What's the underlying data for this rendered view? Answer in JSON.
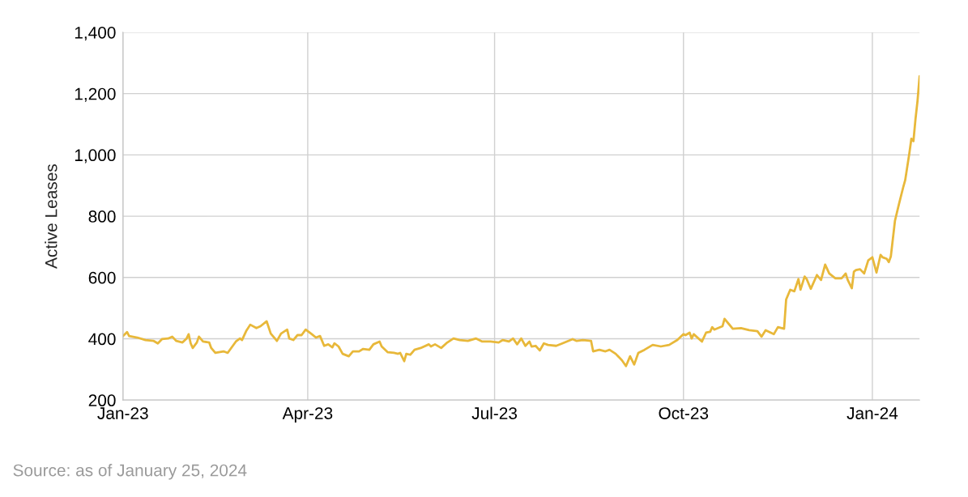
{
  "chart_data": {
    "type": "line",
    "ylabel": "Active Leases",
    "x": [
      "2023-01-01",
      "2023-01-03",
      "2023-01-04",
      "2023-01-08",
      "2023-01-12",
      "2023-01-16",
      "2023-01-18",
      "2023-01-20",
      "2023-01-23",
      "2023-01-25",
      "2023-01-27",
      "2023-01-30",
      "2023-02-01",
      "2023-02-02",
      "2023-02-03",
      "2023-02-04",
      "2023-02-06",
      "2023-02-07",
      "2023-02-09",
      "2023-02-12",
      "2023-02-13",
      "2023-02-15",
      "2023-02-19",
      "2023-02-21",
      "2023-02-25",
      "2023-02-27",
      "2023-02-28",
      "2023-03-02",
      "2023-03-04",
      "2023-03-07",
      "2023-03-09",
      "2023-03-12",
      "2023-03-14",
      "2023-03-17",
      "2023-03-19",
      "2023-03-22",
      "2023-03-23",
      "2023-03-25",
      "2023-03-27",
      "2023-03-29",
      "2023-03-31",
      "2023-04-03",
      "2023-04-05",
      "2023-04-07",
      "2023-04-09",
      "2023-04-11",
      "2023-04-13",
      "2023-04-14",
      "2023-04-16",
      "2023-04-18",
      "2023-04-21",
      "2023-04-23",
      "2023-04-26",
      "2023-04-28",
      "2023-05-01",
      "2023-05-03",
      "2023-05-06",
      "2023-05-07",
      "2023-05-10",
      "2023-05-13",
      "2023-05-15",
      "2023-05-16",
      "2023-05-18",
      "2023-05-19",
      "2023-05-21",
      "2023-05-23",
      "2023-05-26",
      "2023-05-30",
      "2023-05-31",
      "2023-06-02",
      "2023-06-05",
      "2023-06-08",
      "2023-06-11",
      "2023-06-14",
      "2023-06-18",
      "2023-06-22",
      "2023-06-25",
      "2023-06-29",
      "2023-07-03",
      "2023-07-05",
      "2023-07-08",
      "2023-07-10",
      "2023-07-12",
      "2023-07-14",
      "2023-07-16",
      "2023-07-18",
      "2023-07-19",
      "2023-07-21",
      "2023-07-23",
      "2023-07-25",
      "2023-07-27",
      "2023-07-31",
      "2023-08-03",
      "2023-08-08",
      "2023-08-10",
      "2023-08-13",
      "2023-08-17",
      "2023-08-18",
      "2023-08-21",
      "2023-08-24",
      "2023-08-26",
      "2023-08-29",
      "2023-09-01",
      "2023-09-03",
      "2023-09-05",
      "2023-09-07",
      "2023-09-09",
      "2023-09-12",
      "2023-09-16",
      "2023-09-20",
      "2023-09-24",
      "2023-09-28",
      "2023-10-01",
      "2023-10-02",
      "2023-10-04",
      "2023-10-05",
      "2023-10-06",
      "2023-10-10",
      "2023-10-12",
      "2023-10-14",
      "2023-10-15",
      "2023-10-16",
      "2023-10-20",
      "2023-10-21",
      "2023-10-23",
      "2023-10-25",
      "2023-10-29",
      "2023-11-02",
      "2023-11-06",
      "2023-11-08",
      "2023-11-10",
      "2023-11-14",
      "2023-11-16",
      "2023-11-19",
      "2023-11-20",
      "2023-11-22",
      "2023-11-24",
      "2023-11-26",
      "2023-11-27",
      "2023-11-29",
      "2023-11-30",
      "2023-12-02",
      "2023-12-05",
      "2023-12-07",
      "2023-12-09",
      "2023-12-11",
      "2023-12-14",
      "2023-12-17",
      "2023-12-19",
      "2023-12-20",
      "2023-12-22",
      "2023-12-23",
      "2023-12-24",
      "2023-12-26",
      "2023-12-28",
      "2023-12-30",
      "2024-01-01",
      "2024-01-03",
      "2024-01-05",
      "2024-01-06",
      "2024-01-08",
      "2024-01-09",
      "2024-01-10",
      "2024-01-12",
      "2024-01-14",
      "2024-01-16",
      "2024-01-17",
      "2024-01-19",
      "2024-01-20",
      "2024-01-21",
      "2024-01-22",
      "2024-01-23",
      "2024-01-24"
    ],
    "series": [
      {
        "color": "#e8b83a",
        "values": [
          409,
          422,
          409,
          404,
          396,
          393,
          385,
          399,
          401,
          407,
          393,
          388,
          401,
          415,
          385,
          370,
          388,
          407,
          391,
          388,
          370,
          354,
          359,
          354,
          391,
          401,
          396,
          425,
          446,
          435,
          441,
          457,
          417,
          393,
          417,
          430,
          401,
          396,
          412,
          412,
          430,
          415,
          404,
          409,
          377,
          382,
          372,
          385,
          375,
          351,
          343,
          359,
          359,
          367,
          364,
          382,
          391,
          375,
          356,
          354,
          351,
          354,
          327,
          351,
          348,
          364,
          370,
          382,
          375,
          382,
          370,
          388,
          401,
          396,
          393,
          401,
          391,
          391,
          388,
          396,
          391,
          401,
          382,
          401,
          377,
          391,
          375,
          377,
          362,
          385,
          380,
          377,
          385,
          399,
          393,
          396,
          393,
          359,
          364,
          359,
          364,
          351,
          330,
          311,
          343,
          316,
          354,
          364,
          380,
          375,
          380,
          396,
          415,
          412,
          420,
          401,
          415,
          391,
          420,
          423,
          438,
          430,
          441,
          465,
          449,
          433,
          435,
          428,
          425,
          407,
          428,
          415,
          438,
          433,
          528,
          560,
          555,
          595,
          560,
          603,
          595,
          563,
          608,
          592,
          642,
          613,
          597,
          597,
          613,
          592,
          565,
          619,
          624,
          627,
          613,
          656,
          666,
          616,
          674,
          666,
          661,
          650,
          669,
          785,
          841,
          894,
          918,
          1005,
          1053,
          1045,
          1117,
          1177,
          1257
        ]
      }
    ],
    "xlim": [
      "2023-01-01",
      "2024-01-24"
    ],
    "xticks": [
      {
        "value": "2023-01-01",
        "label": "Jan-23"
      },
      {
        "value": "2023-04-01",
        "label": "Apr-23"
      },
      {
        "value": "2023-07-01",
        "label": "Jul-23"
      },
      {
        "value": "2023-10-01",
        "label": "Oct-23"
      },
      {
        "value": "2024-01-01",
        "label": "Jan-24"
      }
    ],
    "ylim": [
      200,
      1400
    ],
    "yticks": [
      {
        "value": 200,
        "label": "200"
      },
      {
        "value": 400,
        "label": "400"
      },
      {
        "value": 600,
        "label": "600"
      },
      {
        "value": 800,
        "label": "800"
      },
      {
        "value": 1000,
        "label": "1,000"
      },
      {
        "value": 1200,
        "label": "1,200"
      },
      {
        "value": 1400,
        "label": "1,400"
      }
    ],
    "grid": true,
    "legend": false,
    "marker": "none",
    "line_style": "solid",
    "annotations": [
      "Source: as of January 25, 2024"
    ]
  }
}
